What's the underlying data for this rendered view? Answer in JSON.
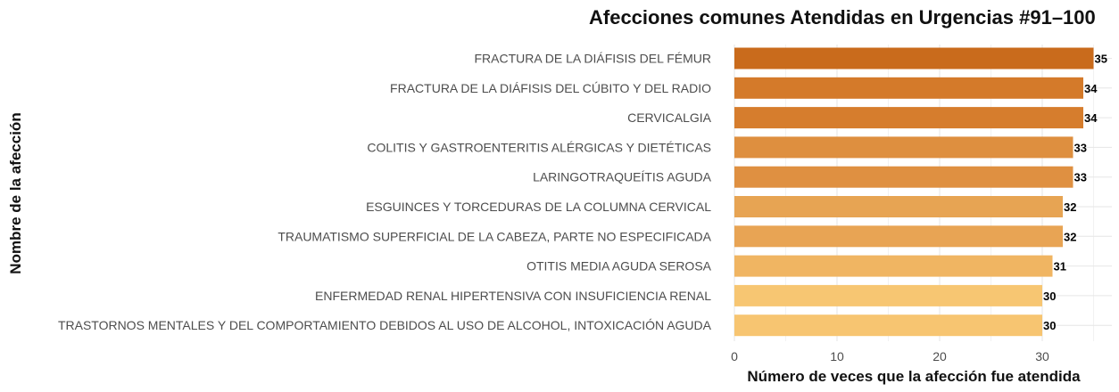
{
  "chart_data": {
    "type": "bar",
    "orientation": "horizontal",
    "title": "Afecciones comunes Atendidas en Urgencias #91–100",
    "xlabel": "Número de veces que la afección fue atendida",
    "ylabel": "Nombre de la afección",
    "xlim": [
      0,
      35
    ],
    "xticks": [
      0,
      10,
      20,
      30
    ],
    "grid": true,
    "legend": "none",
    "categories": [
      "FRACTURA DE LA DIÁFISIS DEL FÉMUR",
      "FRACTURA DE LA DIÁFISIS DEL CÚBITO Y DEL RADIO",
      "CERVICALGIA",
      "COLITIS Y GASTROENTERITIS ALÉRGICAS Y DIETÉTICAS",
      "LARINGOTRAQUEÍTIS AGUDA",
      "ESGUINCES Y TORCEDURAS DE LA COLUMNA CERVICAL",
      "TRAUMATISMO SUPERFICIAL DE LA CABEZA, PARTE NO ESPECIFICADA",
      "OTITIS MEDIA AGUDA SEROSA",
      "ENFERMEDAD RENAL HIPERTENSIVA CON INSUFICIENCIA RENAL",
      "TRASTORNOS MENTALES Y DEL COMPORTAMIENTO DEBIDOS AL USO DE ALCOHOL, INTOXICACIÓN AGUDA"
    ],
    "values": [
      35,
      34,
      34,
      33,
      33,
      32,
      32,
      31,
      30,
      30
    ],
    "colors": [
      "#c96b1c",
      "#d47a2a",
      "#d67d2d",
      "#de8f3f",
      "#df9041",
      "#e7a453",
      "#e8a454",
      "#f0b562",
      "#f7c672",
      "#f7c571"
    ]
  }
}
